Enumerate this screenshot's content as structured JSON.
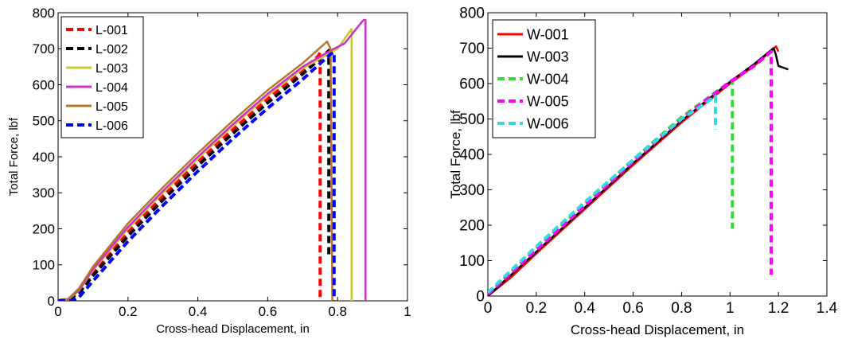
{
  "chart_data": [
    {
      "type": "line",
      "xlabel": "Cross-head Displacement, in",
      "ylabel": "Total Force, lbf",
      "xlim": [
        0,
        1
      ],
      "ylim": [
        0,
        800
      ],
      "xticks": [
        "0",
        "0.2",
        "0.4",
        "0.6",
        "0.8",
        "1"
      ],
      "yticks": [
        "0",
        "100",
        "200",
        "300",
        "400",
        "500",
        "600",
        "700",
        "800"
      ],
      "grid": false,
      "legend_position": "top-left",
      "series": [
        {
          "name": "L-001",
          "color": "#ff0000",
          "dash": "dashed",
          "points": [
            [
              0.0,
              0
            ],
            [
              0.03,
              5
            ],
            [
              0.06,
              25
            ],
            [
              0.1,
              75
            ],
            [
              0.2,
              190
            ],
            [
              0.3,
              290
            ],
            [
              0.4,
              385
            ],
            [
              0.5,
              475
            ],
            [
              0.6,
              560
            ],
            [
              0.7,
              640
            ],
            [
              0.745,
              680
            ],
            [
              0.75,
              690
            ],
            [
              0.75,
              0
            ]
          ]
        },
        {
          "name": "L-002",
          "color": "#000000",
          "dash": "dashed",
          "points": [
            [
              0.0,
              0
            ],
            [
              0.03,
              3
            ],
            [
              0.06,
              22
            ],
            [
              0.1,
              70
            ],
            [
              0.2,
              180
            ],
            [
              0.3,
              280
            ],
            [
              0.4,
              375
            ],
            [
              0.5,
              465
            ],
            [
              0.6,
              550
            ],
            [
              0.7,
              630
            ],
            [
              0.77,
              690
            ],
            [
              0.775,
              695
            ],
            [
              0.775,
              120
            ]
          ]
        },
        {
          "name": "L-003",
          "color": "#c8c832",
          "dash": "solid",
          "points": [
            [
              0.0,
              0
            ],
            [
              0.03,
              4
            ],
            [
              0.06,
              28
            ],
            [
              0.1,
              85
            ],
            [
              0.2,
              200
            ],
            [
              0.3,
              300
            ],
            [
              0.4,
              395
            ],
            [
              0.5,
              485
            ],
            [
              0.6,
              570
            ],
            [
              0.7,
              645
            ],
            [
              0.8,
              700
            ],
            [
              0.84,
              755
            ],
            [
              0.84,
              0
            ]
          ]
        },
        {
          "name": "L-004",
          "color": "#c832c8",
          "dash": "solid",
          "points": [
            [
              0.0,
              0
            ],
            [
              0.03,
              5
            ],
            [
              0.06,
              30
            ],
            [
              0.1,
              88
            ],
            [
              0.2,
              205
            ],
            [
              0.3,
              305
            ],
            [
              0.4,
              400
            ],
            [
              0.5,
              490
            ],
            [
              0.6,
              575
            ],
            [
              0.7,
              650
            ],
            [
              0.78,
              695
            ],
            [
              0.82,
              715
            ],
            [
              0.87,
              775
            ],
            [
              0.875,
              780
            ],
            [
              0.88,
              780
            ],
            [
              0.88,
              0
            ]
          ]
        },
        {
          "name": "L-005",
          "color": "#b4782d",
          "dash": "solid",
          "points": [
            [
              0.0,
              0
            ],
            [
              0.03,
              6
            ],
            [
              0.06,
              35
            ],
            [
              0.1,
              95
            ],
            [
              0.2,
              215
            ],
            [
              0.3,
              315
            ],
            [
              0.4,
              410
            ],
            [
              0.5,
              500
            ],
            [
              0.6,
              585
            ],
            [
              0.7,
              660
            ],
            [
              0.77,
              720
            ],
            [
              0.78,
              700
            ],
            [
              0.785,
              0
            ]
          ]
        },
        {
          "name": "L-006",
          "color": "#0000ff",
          "dash": "dashed",
          "points": [
            [
              0.0,
              0
            ],
            [
              0.04,
              0
            ],
            [
              0.06,
              10
            ],
            [
              0.1,
              55
            ],
            [
              0.2,
              165
            ],
            [
              0.3,
              265
            ],
            [
              0.4,
              360
            ],
            [
              0.5,
              450
            ],
            [
              0.6,
              535
            ],
            [
              0.7,
              615
            ],
            [
              0.78,
              685
            ],
            [
              0.79,
              690
            ],
            [
              0.79,
              0
            ]
          ]
        }
      ]
    },
    {
      "type": "line",
      "xlabel": "Cross-head Displacement, in",
      "ylabel": "Total Force, lbf",
      "xlim": [
        0,
        1.4
      ],
      "ylim": [
        0,
        800
      ],
      "xticks": [
        "0",
        "0.2",
        "0.4",
        "0.6",
        "0.8",
        "1",
        "1.2",
        "1.4"
      ],
      "yticks": [
        "0",
        "100",
        "200",
        "300",
        "400",
        "500",
        "600",
        "700",
        "800"
      ],
      "grid": false,
      "legend_position": "top-left",
      "series": [
        {
          "name": "W-001",
          "color": "#ff0000",
          "dash": "solid",
          "points": [
            [
              0.0,
              0
            ],
            [
              0.1,
              55
            ],
            [
              0.2,
              120
            ],
            [
              0.4,
              245
            ],
            [
              0.6,
              370
            ],
            [
              0.8,
              490
            ],
            [
              1.0,
              600
            ],
            [
              1.1,
              650
            ],
            [
              1.19,
              705
            ],
            [
              1.2,
              690
            ]
          ]
        },
        {
          "name": "W-003",
          "color": "#000000",
          "dash": "solid",
          "points": [
            [
              0.0,
              0
            ],
            [
              0.2,
              125
            ],
            [
              0.4,
              250
            ],
            [
              0.6,
              375
            ],
            [
              0.8,
              495
            ],
            [
              1.0,
              605
            ],
            [
              1.1,
              655
            ],
            [
              1.18,
              700
            ],
            [
              1.19,
              680
            ],
            [
              1.2,
              650
            ],
            [
              1.22,
              645
            ],
            [
              1.24,
              640
            ]
          ]
        },
        {
          "name": "W-004",
          "color": "#32dc32",
          "dash": "dashed",
          "points": [
            [
              0.0,
              5
            ],
            [
              0.1,
              70
            ],
            [
              0.2,
              135
            ],
            [
              0.4,
              260
            ],
            [
              0.6,
              385
            ],
            [
              0.8,
              505
            ],
            [
              0.9,
              555
            ],
            [
              1.01,
              610
            ],
            [
              1.01,
              190
            ]
          ]
        },
        {
          "name": "W-005",
          "color": "#ff00ff",
          "dash": "dashed",
          "points": [
            [
              0.0,
              5
            ],
            [
              0.2,
              130
            ],
            [
              0.4,
              255
            ],
            [
              0.6,
              380
            ],
            [
              0.8,
              500
            ],
            [
              1.0,
              605
            ],
            [
              1.1,
              650
            ],
            [
              1.17,
              690
            ],
            [
              1.17,
              60
            ]
          ]
        },
        {
          "name": "W-006",
          "color": "#32dcdc",
          "dash": "dashed",
          "points": [
            [
              0.0,
              10
            ],
            [
              0.1,
              75
            ],
            [
              0.2,
              140
            ],
            [
              0.4,
              265
            ],
            [
              0.6,
              385
            ],
            [
              0.8,
              500
            ],
            [
              0.9,
              545
            ],
            [
              0.94,
              565
            ],
            [
              0.94,
              470
            ]
          ]
        }
      ]
    }
  ]
}
